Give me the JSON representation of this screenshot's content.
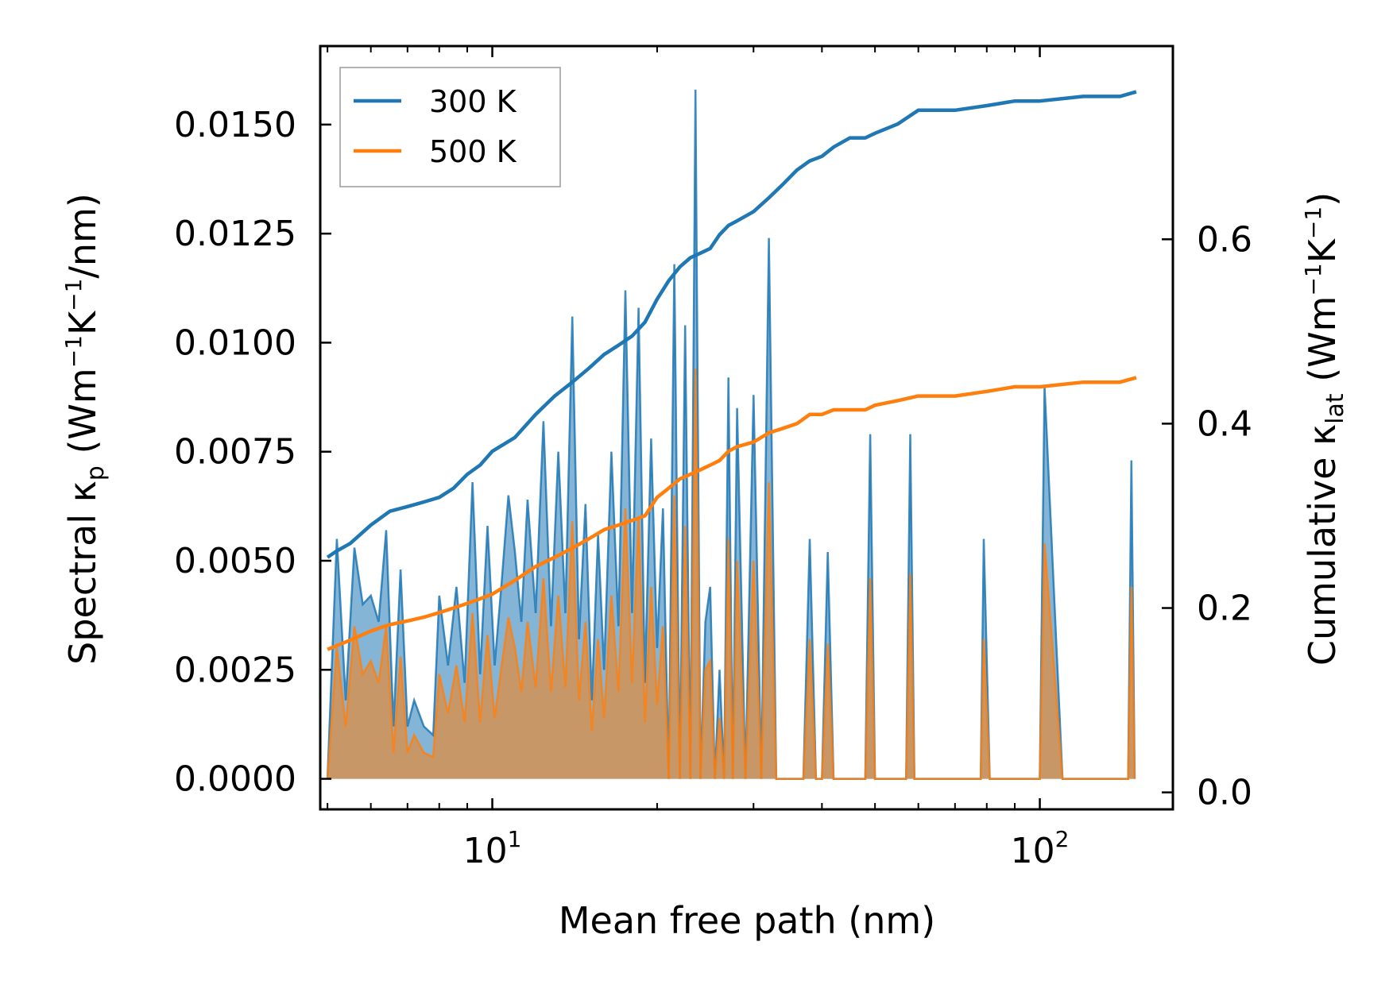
{
  "chart_data": {
    "type": "line",
    "xscale": "log",
    "xlabel": "Mean free path (nm)",
    "xlim": [
      4.85,
      175
    ],
    "x_major_ticks": [
      {
        "value": 10,
        "base": "10",
        "exp": "1"
      },
      {
        "value": 100,
        "base": "10",
        "exp": "2"
      }
    ],
    "x_minor_ticks": [
      5,
      6,
      7,
      8,
      9,
      20,
      30,
      40,
      50,
      60,
      70,
      80,
      90
    ],
    "y_left": {
      "label_parts": {
        "pre": "Spectral κ",
        "sub": "p",
        "mid1": " (Wm",
        "sup1": "−1",
        "mid2": "K",
        "sup2": "−1",
        "post": "/nm)"
      },
      "ylim": [
        -0.0007,
        0.0168
      ],
      "ticks": [
        {
          "value": 0.0,
          "label": "0.0000"
        },
        {
          "value": 0.0025,
          "label": "0.0025"
        },
        {
          "value": 0.005,
          "label": "0.0050"
        },
        {
          "value": 0.0075,
          "label": "0.0075"
        },
        {
          "value": 0.01,
          "label": "0.0100"
        },
        {
          "value": 0.0125,
          "label": "0.0125"
        },
        {
          "value": 0.015,
          "label": "0.0150"
        }
      ]
    },
    "y_right": {
      "label_parts": {
        "pre": "Cumulative κ",
        "sub": "lat",
        "mid1": " (Wm",
        "sup1": "−1",
        "mid2": "K",
        "sup2": "−1",
        "post": ")"
      },
      "ylim": [
        -0.0184,
        0.8096
      ],
      "ticks": [
        {
          "value": 0.0,
          "label": "0.0"
        },
        {
          "value": 0.2,
          "label": "0.2"
        },
        {
          "value": 0.4,
          "label": "0.4"
        },
        {
          "value": 0.6,
          "label": "0.6"
        }
      ]
    },
    "legend": {
      "position": "top-left"
    },
    "series": [
      {
        "name": "300 K",
        "color": "#1f77b4",
        "cumulative": {
          "x": [
            5.0,
            5.2,
            5.5,
            6.0,
            6.5,
            7.0,
            7.5,
            8.0,
            8.5,
            9.0,
            9.5,
            10.0,
            11.0,
            12.0,
            13.0,
            14.0,
            15.0,
            16.0,
            17.0,
            18.0,
            19.0,
            20.0,
            21.0,
            22.0,
            23.0,
            24.0,
            25.0,
            26.0,
            27.0,
            28.0,
            30.0,
            32.0,
            34.0,
            36.0,
            38.0,
            40.0,
            42.0,
            45.0,
            48.0,
            50.0,
            55.0,
            60.0,
            70.0,
            80.0,
            90.0,
            100.0,
            120.0,
            140.0,
            150.0
          ],
          "y": [
            0.255,
            0.262,
            0.27,
            0.29,
            0.305,
            0.31,
            0.315,
            0.32,
            0.33,
            0.345,
            0.355,
            0.37,
            0.385,
            0.41,
            0.43,
            0.445,
            0.46,
            0.475,
            0.485,
            0.495,
            0.51,
            0.535,
            0.555,
            0.57,
            0.58,
            0.585,
            0.59,
            0.605,
            0.615,
            0.62,
            0.63,
            0.645,
            0.66,
            0.675,
            0.685,
            0.69,
            0.7,
            0.71,
            0.71,
            0.715,
            0.725,
            0.74,
            0.74,
            0.745,
            0.75,
            0.75,
            0.755,
            0.755,
            0.76
          ]
        },
        "spectral": {
          "x": [
            5.0,
            5.2,
            5.4,
            5.6,
            5.8,
            6.0,
            6.2,
            6.4,
            6.6,
            6.8,
            7.0,
            7.2,
            7.5,
            7.8,
            8.0,
            8.3,
            8.6,
            8.9,
            9.2,
            9.5,
            9.8,
            10.1,
            10.4,
            10.7,
            11.0,
            11.3,
            11.6,
            12.0,
            12.4,
            12.8,
            13.2,
            13.6,
            14.0,
            14.4,
            14.8,
            15.2,
            15.6,
            16.0,
            16.5,
            17.0,
            17.5,
            18.0,
            18.5,
            19.0,
            19.5,
            20.0,
            20.5,
            21.0,
            21.5,
            22.0,
            22.5,
            23.0,
            23.5,
            24.0,
            24.5,
            25.0,
            25.5,
            26.0,
            26.5,
            27.0,
            27.5,
            28.0,
            29.0,
            30.0,
            31.0,
            32.0,
            33.0,
            34.0,
            35.0,
            36.0,
            37.0,
            38.0,
            39.0,
            40.0,
            41.0,
            42.0,
            45.0,
            48.0,
            49.0,
            50.0,
            52.0,
            55.0,
            57.0,
            58.0,
            59.0,
            61.0,
            75.0,
            77.0,
            78.0,
            79.0,
            81.0,
            98.0,
            100.0,
            102.0,
            110.0,
            112.0,
            114.0,
            143.0,
            145.0,
            147.0,
            149.0
          ],
          "y": [
            0.0,
            0.0055,
            0.0018,
            0.0053,
            0.004,
            0.0042,
            0.0036,
            0.0057,
            0.0012,
            0.0048,
            0.0012,
            0.0018,
            0.0012,
            0.001,
            0.0042,
            0.0026,
            0.0044,
            0.0022,
            0.0068,
            0.0024,
            0.0058,
            0.0026,
            0.0045,
            0.0065,
            0.0052,
            0.0036,
            0.0064,
            0.0038,
            0.0082,
            0.0035,
            0.0075,
            0.0038,
            0.0106,
            0.0032,
            0.0063,
            0.0018,
            0.0056,
            0.0025,
            0.0075,
            0.0035,
            0.0112,
            0.0038,
            0.0108,
            0.0022,
            0.0078,
            0.003,
            0.0062,
            0.0,
            0.0118,
            0.0,
            0.0104,
            0.0,
            0.0158,
            0.0,
            0.0036,
            0.0044,
            0.0,
            0.0025,
            0.0,
            0.0092,
            0.0,
            0.0085,
            0.0,
            0.0088,
            0.0,
            0.0124,
            0.0,
            0.0,
            0.0,
            0.0,
            0.0,
            0.0055,
            0.0,
            0.0,
            0.0052,
            0.0,
            0.0,
            0.0,
            0.0079,
            0.0,
            0.0,
            0.0,
            0.0,
            0.0079,
            0.0,
            0.0,
            0.0,
            0.0,
            0.0,
            0.0055,
            0.0,
            0.0,
            0.0,
            0.009,
            0.0,
            0.0,
            0.0,
            0.0,
            0.0,
            0.0073,
            0.0
          ]
        }
      },
      {
        "name": "500 K",
        "color": "#ff7f0e",
        "cumulative": {
          "x": [
            5.0,
            5.5,
            6.0,
            6.5,
            7.0,
            7.5,
            8.0,
            8.5,
            9.0,
            9.5,
            10.0,
            11.0,
            12.0,
            13.0,
            14.0,
            15.0,
            16.0,
            17.0,
            18.0,
            19.0,
            20.0,
            21.0,
            22.0,
            23.0,
            24.0,
            25.0,
            26.0,
            27.0,
            28.0,
            30.0,
            32.0,
            34.0,
            36.0,
            38.0,
            40.0,
            42.0,
            45.0,
            48.0,
            50.0,
            55.0,
            60.0,
            70.0,
            80.0,
            90.0,
            100.0,
            120.0,
            140.0,
            150.0
          ],
          "y": [
            0.155,
            0.165,
            0.175,
            0.182,
            0.186,
            0.19,
            0.195,
            0.2,
            0.205,
            0.21,
            0.215,
            0.23,
            0.245,
            0.255,
            0.265,
            0.275,
            0.285,
            0.29,
            0.295,
            0.3,
            0.32,
            0.33,
            0.34,
            0.345,
            0.35,
            0.355,
            0.36,
            0.37,
            0.375,
            0.38,
            0.39,
            0.395,
            0.4,
            0.41,
            0.41,
            0.415,
            0.415,
            0.415,
            0.42,
            0.425,
            0.43,
            0.43,
            0.435,
            0.44,
            0.44,
            0.445,
            0.445,
            0.45
          ]
        },
        "spectral": {
          "x": [
            5.0,
            5.2,
            5.4,
            5.6,
            5.8,
            6.0,
            6.2,
            6.4,
            6.6,
            6.8,
            7.0,
            7.2,
            7.5,
            7.8,
            8.0,
            8.3,
            8.6,
            8.9,
            9.2,
            9.5,
            9.8,
            10.1,
            10.4,
            10.7,
            11.0,
            11.3,
            11.6,
            12.0,
            12.4,
            12.8,
            13.2,
            13.6,
            14.0,
            14.4,
            14.8,
            15.2,
            15.6,
            16.0,
            16.5,
            17.0,
            17.5,
            18.0,
            18.5,
            19.0,
            19.5,
            20.0,
            20.5,
            21.0,
            21.5,
            22.0,
            22.5,
            23.0,
            23.5,
            24.0,
            24.5,
            25.0,
            25.5,
            26.0,
            26.5,
            27.0,
            27.5,
            28.0,
            29.0,
            30.0,
            31.0,
            32.0,
            33.0,
            34.0,
            35.0,
            36.0,
            37.0,
            38.0,
            39.0,
            40.0,
            41.0,
            42.0,
            45.0,
            48.0,
            49.0,
            50.0,
            52.0,
            55.0,
            57.0,
            58.0,
            59.0,
            61.0,
            75.0,
            77.0,
            78.0,
            79.0,
            81.0,
            98.0,
            100.0,
            102.0,
            110.0,
            112.0,
            114.0,
            143.0,
            145.0,
            147.0,
            149.0
          ],
          "y": [
            0.0,
            0.003,
            0.0012,
            0.0035,
            0.0024,
            0.0027,
            0.0022,
            0.0035,
            0.0006,
            0.0028,
            0.0006,
            0.001,
            0.0006,
            0.0005,
            0.0024,
            0.0015,
            0.0026,
            0.0013,
            0.0038,
            0.0013,
            0.0033,
            0.0014,
            0.0026,
            0.0037,
            0.003,
            0.002,
            0.0036,
            0.0021,
            0.0046,
            0.002,
            0.0042,
            0.0021,
            0.0059,
            0.0018,
            0.0036,
            0.0011,
            0.0032,
            0.0014,
            0.0042,
            0.002,
            0.0062,
            0.0022,
            0.006,
            0.0013,
            0.0044,
            0.0017,
            0.0035,
            0.0,
            0.0065,
            0.0,
            0.0058,
            0.0,
            0.0094,
            0.0,
            0.0025,
            0.0027,
            0.0,
            0.0014,
            0.0,
            0.0055,
            0.0,
            0.005,
            0.0,
            0.005,
            0.0,
            0.0068,
            0.0,
            0.0,
            0.0,
            0.0,
            0.0,
            0.0032,
            0.0,
            0.0,
            0.0031,
            0.0,
            0.0,
            0.0,
            0.0046,
            0.0,
            0.0,
            0.0,
            0.0,
            0.0047,
            0.0,
            0.0,
            0.0,
            0.0,
            0.0,
            0.0032,
            0.0,
            0.0,
            0.0,
            0.0054,
            0.0,
            0.0,
            0.0,
            0.0,
            0.0,
            0.0044,
            0.0
          ]
        }
      }
    ]
  }
}
